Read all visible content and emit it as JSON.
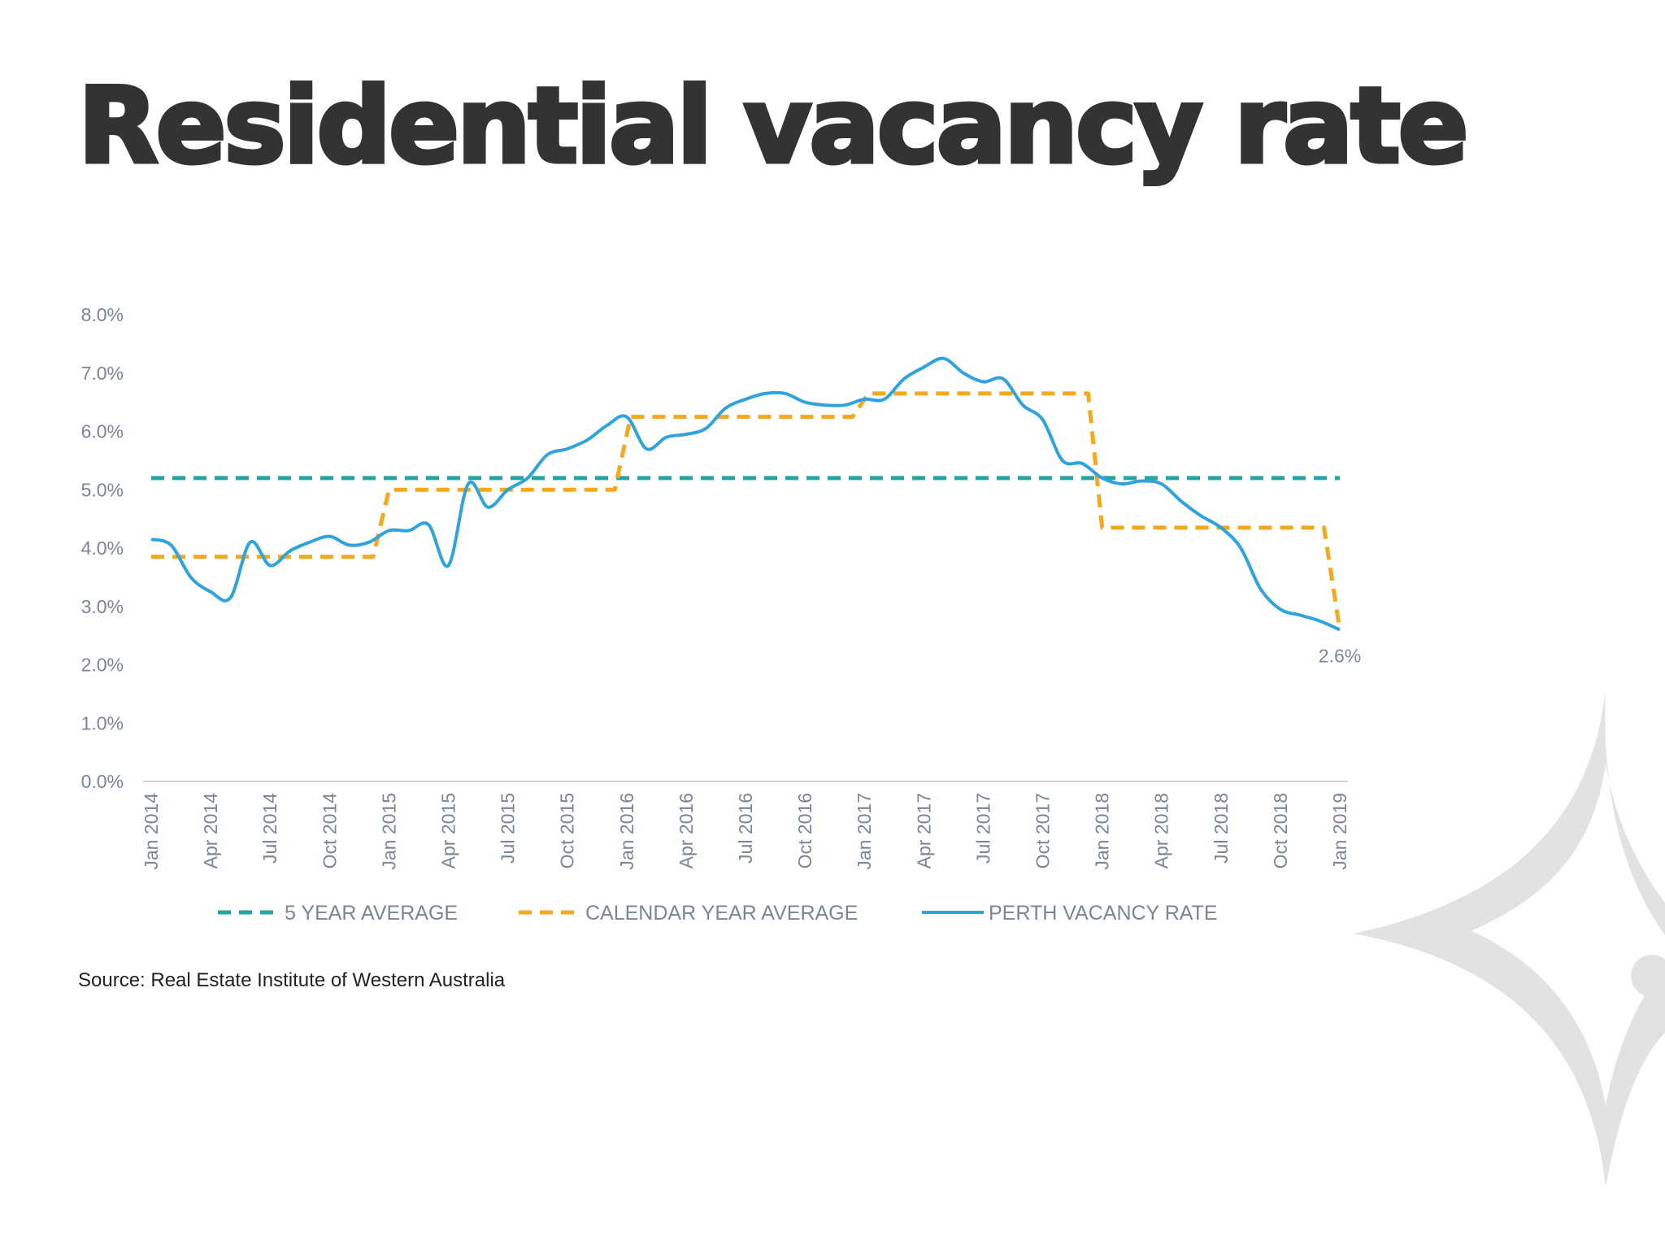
{
  "page": {
    "title": "Residential vacancy rate",
    "source": "Source: Real Estate Institute of Western Australia"
  },
  "colors": {
    "five_year": "#26a6a2",
    "calendar_year": "#f5a81c",
    "perth": "#2ea3dc",
    "tick_text": "#7b8594",
    "title": "#333333",
    "logo": "#e2e2e2"
  },
  "logo": {
    "icon": "star-logo-icon"
  },
  "chart_data": {
    "type": "line",
    "ylim": [
      0,
      8
    ],
    "y_ticks": [
      0,
      1,
      2,
      3,
      4,
      5,
      6,
      7,
      8
    ],
    "y_tick_labels": [
      "0.0%",
      "1.0%",
      "2.0%",
      "3.0%",
      "4.0%",
      "5.0%",
      "6.0%",
      "7.0%",
      "8.0%"
    ],
    "x_ticks": [
      0,
      3,
      6,
      9,
      12,
      15,
      18,
      21,
      24,
      27,
      30,
      33,
      36,
      39,
      42,
      45,
      48,
      51,
      54,
      57,
      60
    ],
    "x_tick_labels": [
      "Jan 2014",
      "Apr 2014",
      "Jul 2014",
      "Oct 2014",
      "Jan 2015",
      "Apr 2015",
      "Jul 2015",
      "Oct 2015",
      "Jan 2016",
      "Apr 2016",
      "Jul 2016",
      "Oct 2016",
      "Jan 2017",
      "Apr 2017",
      "Jul 2017",
      "Oct 2017",
      "Jan 2018",
      "Apr 2018",
      "Jul 2018",
      "Oct 2018",
      "Jan 2019"
    ],
    "grid": false,
    "legend": "bottom",
    "annotation": {
      "x": 60,
      "y": 2.6,
      "text": "2.6%"
    },
    "series": [
      {
        "name": "5 YEAR AVERAGE",
        "style": "dashed",
        "points": [
          [
            0,
            5.2
          ],
          [
            60,
            5.2
          ]
        ]
      },
      {
        "name": "CALENDAR YEAR AVERAGE",
        "style": "dashed",
        "points": [
          [
            0,
            3.85
          ],
          [
            11.2,
            3.85
          ],
          [
            12,
            5.0
          ],
          [
            23.4,
            5.0
          ],
          [
            24.2,
            6.25
          ],
          [
            35.4,
            6.25
          ],
          [
            36.2,
            6.65
          ],
          [
            47.3,
            6.65
          ],
          [
            48.0,
            4.35
          ],
          [
            59.2,
            4.35
          ],
          [
            60,
            2.6
          ]
        ]
      },
      {
        "name": "PERTH VACANCY RATE",
        "style": "solid",
        "points": [
          [
            0,
            4.15
          ],
          [
            1,
            4.05
          ],
          [
            2,
            3.5
          ],
          [
            3,
            3.25
          ],
          [
            4,
            3.15
          ],
          [
            5,
            4.1
          ],
          [
            6,
            3.7
          ],
          [
            7,
            3.95
          ],
          [
            8,
            4.1
          ],
          [
            9,
            4.2
          ],
          [
            10,
            4.05
          ],
          [
            11,
            4.1
          ],
          [
            12,
            4.3
          ],
          [
            13,
            4.3
          ],
          [
            14,
            4.4
          ],
          [
            15,
            3.7
          ],
          [
            16,
            5.1
          ],
          [
            17,
            4.7
          ],
          [
            18,
            5.0
          ],
          [
            19,
            5.2
          ],
          [
            20,
            5.6
          ],
          [
            21,
            5.7
          ],
          [
            22,
            5.85
          ],
          [
            23,
            6.1
          ],
          [
            24,
            6.25
          ],
          [
            25,
            5.7
          ],
          [
            26,
            5.9
          ],
          [
            27,
            5.95
          ],
          [
            28,
            6.05
          ],
          [
            29,
            6.4
          ],
          [
            30,
            6.55
          ],
          [
            31,
            6.65
          ],
          [
            32,
            6.65
          ],
          [
            33,
            6.5
          ],
          [
            34,
            6.45
          ],
          [
            35,
            6.45
          ],
          [
            36,
            6.55
          ],
          [
            37,
            6.55
          ],
          [
            38,
            6.9
          ],
          [
            39,
            7.1
          ],
          [
            40,
            7.25
          ],
          [
            41,
            7.0
          ],
          [
            42,
            6.85
          ],
          [
            43,
            6.9
          ],
          [
            44,
            6.45
          ],
          [
            45,
            6.2
          ],
          [
            46,
            5.5
          ],
          [
            47,
            5.45
          ],
          [
            48,
            5.2
          ],
          [
            49,
            5.1
          ],
          [
            50,
            5.15
          ],
          [
            51,
            5.1
          ],
          [
            52,
            4.8
          ],
          [
            53,
            4.55
          ],
          [
            54,
            4.35
          ],
          [
            55,
            4.0
          ],
          [
            56,
            3.3
          ],
          [
            57,
            2.95
          ],
          [
            58,
            2.85
          ],
          [
            59,
            2.75
          ],
          [
            60,
            2.6
          ]
        ]
      }
    ]
  }
}
